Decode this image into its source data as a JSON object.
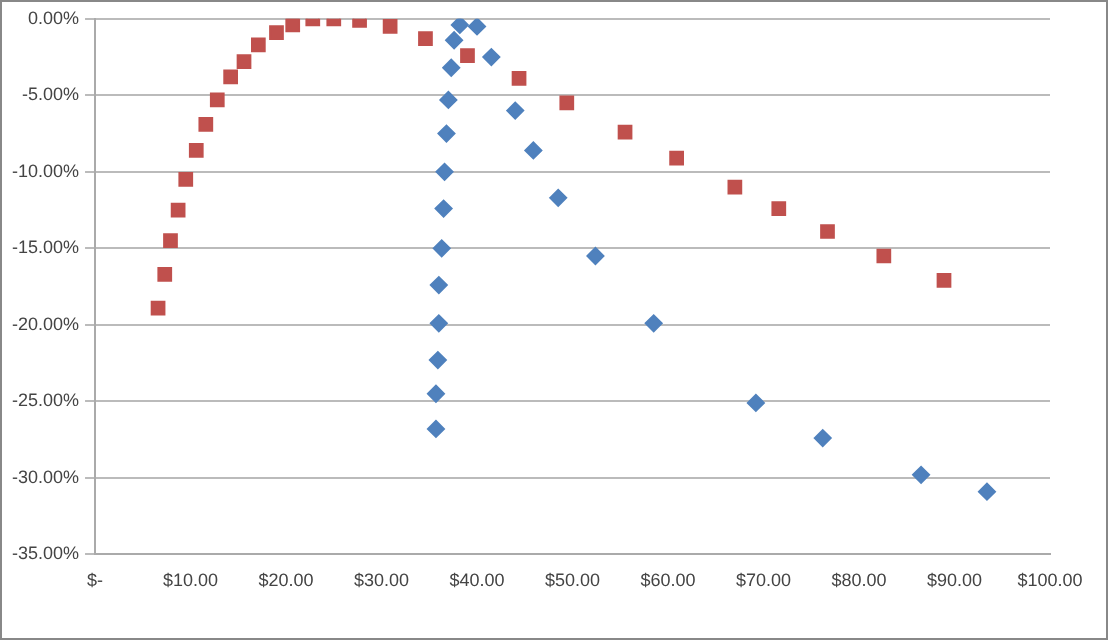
{
  "chart_data": {
    "type": "scatter",
    "xlim": [
      0,
      100
    ],
    "ylim": [
      -35,
      0
    ],
    "xticks": [
      {
        "value": 0,
        "label": "$-"
      },
      {
        "value": 10,
        "label": "$10.00"
      },
      {
        "value": 20,
        "label": "$20.00"
      },
      {
        "value": 30,
        "label": "$30.00"
      },
      {
        "value": 40,
        "label": "$40.00"
      },
      {
        "value": 50,
        "label": "$50.00"
      },
      {
        "value": 60,
        "label": "$60.00"
      },
      {
        "value": 70,
        "label": "$70.00"
      },
      {
        "value": 80,
        "label": "$80.00"
      },
      {
        "value": 90,
        "label": "$90.00"
      },
      {
        "value": 100,
        "label": "$100.00"
      }
    ],
    "yticks": [
      {
        "value": 0,
        "label": "0.00%"
      },
      {
        "value": -5,
        "label": "-5.00%"
      },
      {
        "value": -10,
        "label": "-10.00%"
      },
      {
        "value": -15,
        "label": "-15.00%"
      },
      {
        "value": -20,
        "label": "-20.00%"
      },
      {
        "value": -25,
        "label": "-25.00%"
      },
      {
        "value": -30,
        "label": "-30.00%"
      },
      {
        "value": -35,
        "label": "-35.00%"
      }
    ],
    "grid": "y",
    "legend": false,
    "series": [
      {
        "color": "#4f81bd",
        "marker": "diamond",
        "x": [
          38.2,
          40.0,
          37.6,
          41.5,
          37.3,
          37.0,
          36.8,
          36.6,
          36.5,
          36.3,
          36.0,
          36.0,
          35.9,
          35.7,
          35.7,
          44.0,
          45.9,
          48.5,
          52.4,
          58.5,
          69.2,
          76.2,
          86.5,
          93.4
        ],
        "values": [
          -0.4,
          -0.5,
          -1.4,
          -2.5,
          -3.2,
          -5.3,
          -7.5,
          -10.0,
          -12.4,
          -15.0,
          -17.4,
          -19.9,
          -22.3,
          -24.5,
          -26.8,
          -6.0,
          -8.6,
          -11.7,
          -15.5,
          -19.9,
          -25.1,
          -27.4,
          -29.8,
          -30.9
        ]
      },
      {
        "color": "#c0504d",
        "marker": "square",
        "x": [
          6.6,
          7.3,
          7.9,
          8.7,
          9.5,
          10.6,
          11.6,
          12.8,
          14.2,
          15.6,
          17.1,
          19.0,
          20.7,
          22.8,
          25.0,
          27.7,
          30.9,
          34.6,
          39.0,
          44.4,
          49.4,
          55.5,
          60.9,
          67.0,
          71.6,
          76.7,
          82.6,
          88.9
        ],
        "values": [
          -18.9,
          -16.7,
          -14.5,
          -12.5,
          -10.5,
          -8.6,
          -6.9,
          -5.3,
          -3.8,
          -2.8,
          -1.7,
          -0.9,
          -0.4,
          0.0,
          0.0,
          -0.1,
          -0.5,
          -1.3,
          -2.4,
          -3.9,
          -5.5,
          -7.4,
          -9.1,
          -11.0,
          -12.4,
          -13.9,
          -15.5,
          -17.1
        ]
      }
    ]
  }
}
